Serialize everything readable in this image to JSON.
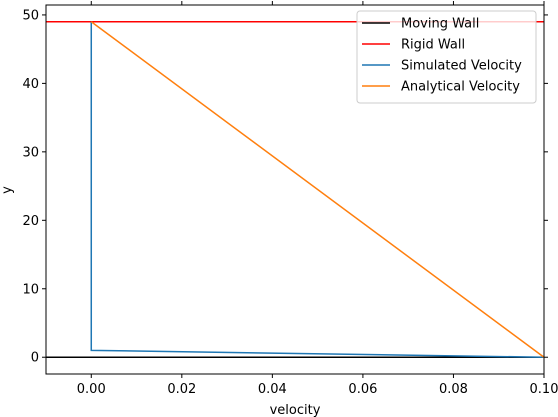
{
  "chart_data": {
    "type": "line",
    "title": "",
    "xlabel": "velocity",
    "ylabel": "y",
    "xlim": [
      -0.01,
      0.1
    ],
    "ylim": [
      -2.45,
      51.45
    ],
    "xticks": [
      {
        "value": 0.0,
        "label": "0.00"
      },
      {
        "value": 0.02,
        "label": "0.02"
      },
      {
        "value": 0.04,
        "label": "0.04"
      },
      {
        "value": 0.06,
        "label": "0.06"
      },
      {
        "value": 0.08,
        "label": "0.08"
      },
      {
        "value": 0.1,
        "label": "0.10"
      }
    ],
    "yticks": [
      {
        "value": 0,
        "label": "0"
      },
      {
        "value": 10,
        "label": "10"
      },
      {
        "value": 20,
        "label": "20"
      },
      {
        "value": 30,
        "label": "30"
      },
      {
        "value": 40,
        "label": "40"
      },
      {
        "value": 50,
        "label": "50"
      }
    ],
    "grid": false,
    "legend_position": "top-right",
    "series": [
      {
        "name": "Moving Wall",
        "color": "#000000",
        "x": [
          -0.01,
          0.1
        ],
        "y": [
          0,
          0
        ]
      },
      {
        "name": "Rigid Wall",
        "color": "#ff0000",
        "x": [
          -0.01,
          0.1
        ],
        "y": [
          49,
          49
        ]
      },
      {
        "name": "Simulated Velocity",
        "color": "#1f77b4",
        "x": [
          0.1,
          0.0,
          0.0
        ],
        "y": [
          0,
          1,
          49
        ]
      },
      {
        "name": "Analytical Velocity",
        "color": "#ff7f0e",
        "x": [
          0.1,
          0.0
        ],
        "y": [
          0,
          49
        ]
      }
    ]
  }
}
